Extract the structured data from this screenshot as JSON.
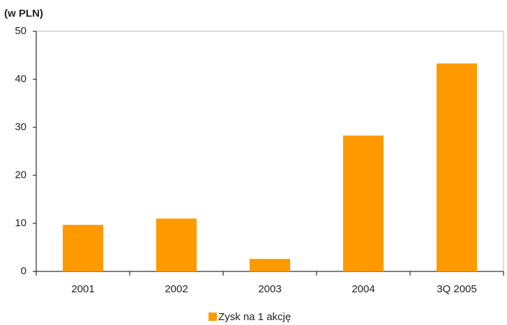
{
  "chart_data": {
    "type": "bar",
    "subtitle": "(w PLN)",
    "categories": [
      "2001",
      "2002",
      "2003",
      "2004",
      "3Q 2005"
    ],
    "series": [
      {
        "name": "Zysk na 1 akcję",
        "color": "#ff9900",
        "values": [
          9.7,
          11.0,
          2.6,
          28.3,
          43.3
        ]
      }
    ],
    "ylim": [
      0,
      50
    ],
    "yticks": [
      0,
      10,
      20,
      30,
      40,
      50
    ],
    "grid": false,
    "legend": "bottom"
  }
}
